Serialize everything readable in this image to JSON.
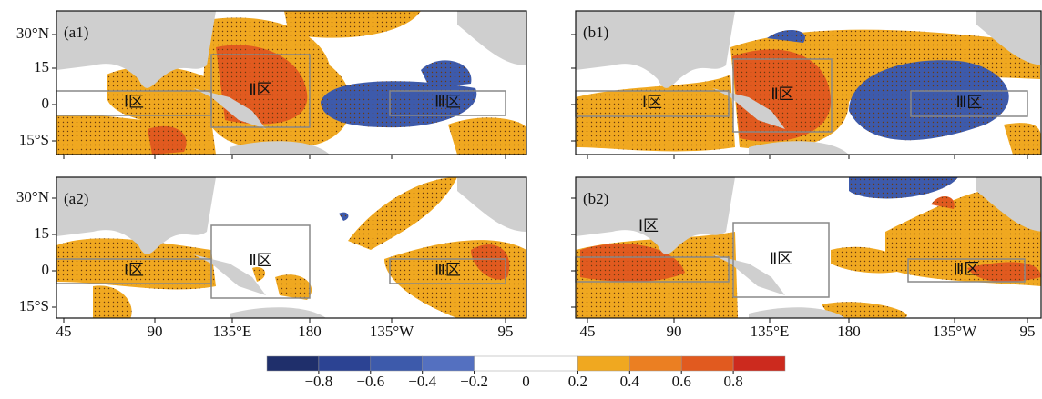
{
  "panels": [
    {
      "label": "(a1)",
      "regions": [
        "Ⅰ区",
        "Ⅱ区",
        "Ⅲ区"
      ]
    },
    {
      "label": "(b1)",
      "regions": [
        "Ⅰ区",
        "Ⅱ区",
        "Ⅲ区"
      ]
    },
    {
      "label": "(a2)",
      "regions": [
        "Ⅰ区",
        "Ⅱ区",
        "Ⅲ区"
      ]
    },
    {
      "label": "(b2)",
      "regions": [
        "Ⅰ区",
        "Ⅱ区",
        "Ⅲ区"
      ]
    }
  ],
  "lat_ticks": [
    "30°N",
    "15",
    "0",
    "15°S"
  ],
  "lon_ticks": [
    "45",
    "90",
    "135°E",
    "180",
    "135°W",
    "95"
  ],
  "colorbar": {
    "levels": [
      -1,
      -0.8,
      -0.6,
      -0.4,
      -0.2,
      0,
      0.2,
      0.4,
      0.6,
      0.8,
      1
    ],
    "colors": [
      "#1f2f6b",
      "#2c4393",
      "#3d5aab",
      "#5470c0",
      "#ffffff",
      "#ffffff",
      "#f0a820",
      "#eb7f22",
      "#e15a1f",
      "#cc2a1e"
    ],
    "ticks": [
      {
        "value": -0.8,
        "label": "−0.8"
      },
      {
        "value": -0.6,
        "label": "−0.6"
      },
      {
        "value": -0.4,
        "label": "−0.4"
      },
      {
        "value": -0.2,
        "label": "−0.2"
      },
      0,
      0.2,
      0.4,
      0.6,
      0.8
    ]
  }
}
